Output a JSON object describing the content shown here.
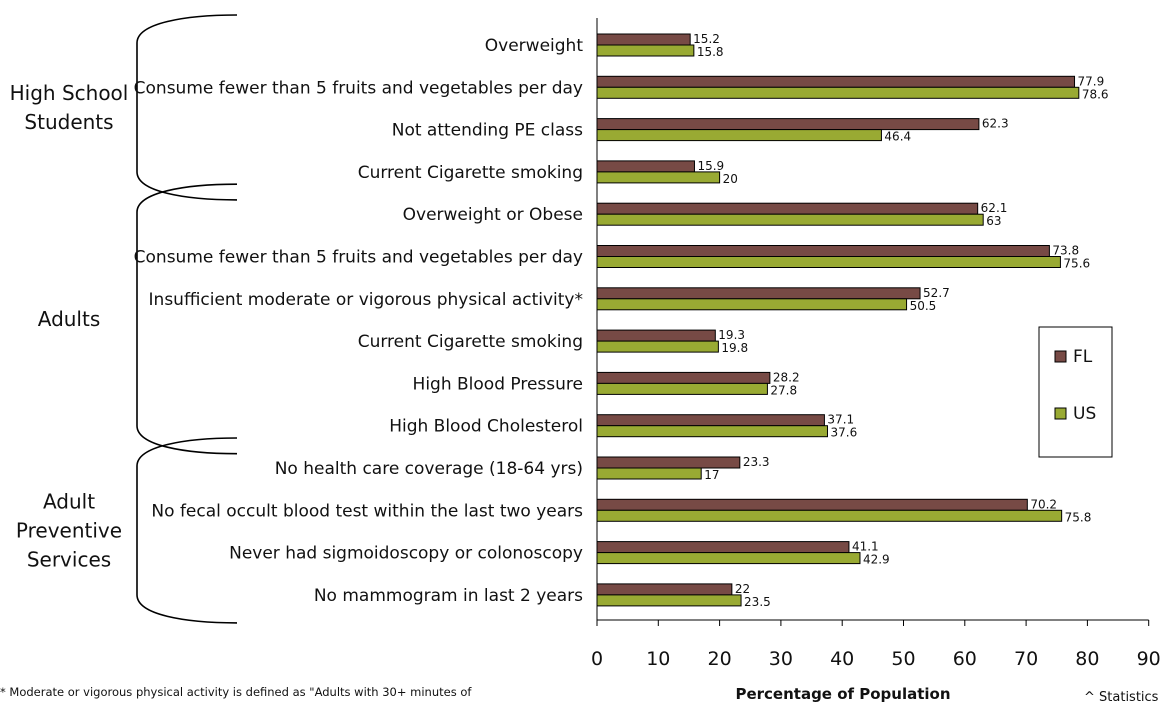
{
  "chart_data": {
    "type": "bar",
    "orientation": "horizontal",
    "xlabel": "Percentage of Population",
    "xlim": [
      0,
      90
    ],
    "xticks": [
      0,
      10,
      20,
      30,
      40,
      50,
      60,
      70,
      80,
      90
    ],
    "legend": {
      "placement": "right",
      "entries": [
        "FL",
        "US"
      ]
    },
    "colors": {
      "FL": "#774a45",
      "US": "#99aa33"
    },
    "groups": [
      {
        "name": "High School Students",
        "lines": [
          "High School",
          "Students"
        ],
        "categories": [
          {
            "label": "Overweight",
            "FL": 15.2,
            "US": 15.8
          },
          {
            "label": "Consume fewer than 5 fruits and vegetables per day",
            "FL": 77.9,
            "US": 78.6
          },
          {
            "label": "Not attending PE class",
            "FL": 62.3,
            "US": 46.4
          },
          {
            "label": "Current Cigarette smoking",
            "FL": 15.9,
            "US": 20
          }
        ]
      },
      {
        "name": "Adults",
        "lines": [
          "Adults"
        ],
        "categories": [
          {
            "label": "Overweight or Obese",
            "FL": 62.1,
            "US": 63
          },
          {
            "label": "Consume fewer than 5 fruits and vegetables per day",
            "FL": 73.8,
            "US": 75.6
          },
          {
            "label": "Insufficient moderate or vigorous physical activity*",
            "FL": 52.7,
            "US": 50.5
          },
          {
            "label": "Current Cigarette smoking",
            "FL": 19.3,
            "US": 19.8
          },
          {
            "label": "High Blood Pressure",
            "FL": 28.2,
            "US": 27.8
          },
          {
            "label": "High Blood Cholesterol",
            "FL": 37.1,
            "US": 37.6
          }
        ]
      },
      {
        "name": "Adult Preventive Services",
        "lines": [
          "Adult",
          "Preventive",
          "Services"
        ],
        "categories": [
          {
            "label": "No health care coverage (18-64 yrs)",
            "FL": 23.3,
            "US": 17
          },
          {
            "label": "No fecal occult blood test within the last two years",
            "FL": 70.2,
            "US": 75.8
          },
          {
            "label": "Never had sigmoidoscopy or colonoscopy",
            "FL": 41.1,
            "US": 42.9
          },
          {
            "label": "No mammogram in last 2 years",
            "FL": 22,
            "US": 23.5
          }
        ]
      }
    ]
  },
  "footnote": "* Moderate or vigorous physical activity is defined as \"Adults with 30+ minutes of",
  "footnote_right": "^ Statistics p"
}
